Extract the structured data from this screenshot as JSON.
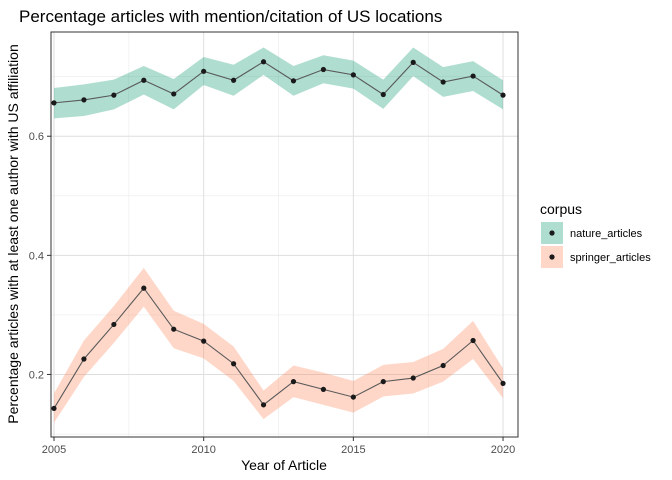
{
  "chart_data": {
    "type": "line",
    "title": "Percentage articles with mention/citation of US locations",
    "xlabel": "Year of Article",
    "ylabel": "Percentage articles with at least one author with US affiliation",
    "xlim": [
      2004.9,
      2020.5
    ],
    "ylim": [
      0.095,
      0.775
    ],
    "x_ticks": [
      2005,
      2010,
      2015,
      2020
    ],
    "x_tick_labels": [
      "2005",
      "2010",
      "2015",
      "2020"
    ],
    "y_ticks": [
      0.2,
      0.4,
      0.6
    ],
    "y_tick_labels": [
      "0.2",
      "0.4",
      "0.6"
    ],
    "grid": true,
    "legend": {
      "title": "corpus",
      "position": "right"
    },
    "x": [
      2005,
      2006,
      2007,
      2008,
      2009,
      2010,
      2011,
      2012,
      2013,
      2014,
      2015,
      2016,
      2017,
      2018,
      2019,
      2020
    ],
    "series": [
      {
        "name": "nature_articles",
        "color": "#1b9e77",
        "values": [
          0.656,
          0.661,
          0.669,
          0.694,
          0.671,
          0.709,
          0.694,
          0.725,
          0.693,
          0.712,
          0.703,
          0.67,
          0.724,
          0.691,
          0.701,
          0.669
        ],
        "lower": [
          0.63,
          0.634,
          0.645,
          0.67,
          0.645,
          0.686,
          0.668,
          0.703,
          0.668,
          0.689,
          0.68,
          0.646,
          0.701,
          0.666,
          0.676,
          0.645
        ],
        "upper": [
          0.681,
          0.687,
          0.695,
          0.718,
          0.696,
          0.733,
          0.72,
          0.749,
          0.718,
          0.736,
          0.727,
          0.695,
          0.749,
          0.716,
          0.726,
          0.694
        ]
      },
      {
        "name": "springer_articles",
        "color": "#fc8d62",
        "values": [
          0.143,
          0.226,
          0.284,
          0.345,
          0.276,
          0.256,
          0.218,
          0.149,
          0.188,
          0.175,
          0.162,
          0.188,
          0.194,
          0.215,
          0.257,
          0.185
        ],
        "lower": [
          0.119,
          0.196,
          0.253,
          0.314,
          0.244,
          0.227,
          0.189,
          0.125,
          0.162,
          0.149,
          0.136,
          0.163,
          0.168,
          0.188,
          0.226,
          0.16
        ],
        "upper": [
          0.168,
          0.257,
          0.315,
          0.379,
          0.307,
          0.285,
          0.247,
          0.173,
          0.215,
          0.203,
          0.189,
          0.216,
          0.221,
          0.243,
          0.29,
          0.21
        ]
      }
    ]
  }
}
